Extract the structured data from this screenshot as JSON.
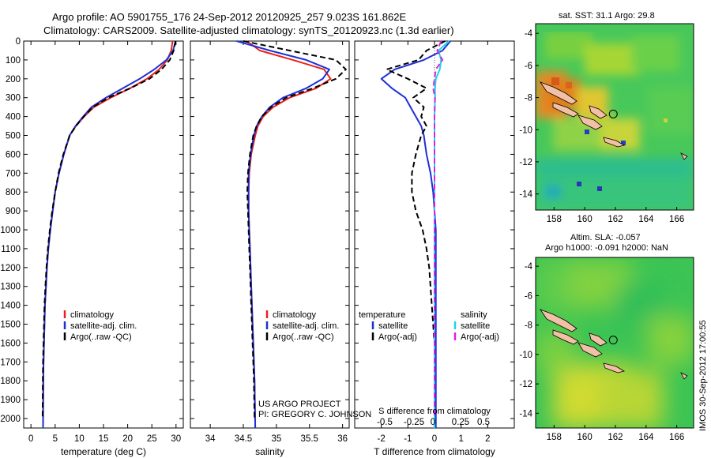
{
  "title_line1": "Argo profile: AO 5901755_176 24-Sep-2012 20120925_257 9.023S 161.862E",
  "title_line2": "Climatology: CARS2009. Satellite-adjusted climatology: synTS_20120923.nc (1.3d earlier)",
  "side_label": "IMOS 30-Sep-2012 17:00:55",
  "credit_line1": "US ARGO PROJECT",
  "credit_line2": "PI: GREGORY C. JOHNSON",
  "depth_ticks": [
    0,
    100,
    200,
    300,
    400,
    500,
    600,
    700,
    800,
    900,
    1000,
    1100,
    1200,
    1300,
    1400,
    1500,
    1600,
    1700,
    1800,
    1900,
    2000
  ],
  "colors": {
    "climatology": "#e8231c",
    "satellite": "#1f2fd6",
    "argo": "#000000",
    "sat_salinity": "#17d8e6",
    "argo_salinity": "#e020e0"
  },
  "chart_data": [
    {
      "type": "line",
      "xlabel": "temperature (deg C)",
      "xlim": [
        -1.5,
        31.5
      ],
      "ylim": [
        2050,
        0
      ],
      "xticks": [
        0,
        5,
        10,
        15,
        20,
        25,
        30
      ],
      "legend": [
        "climatology",
        "satellite-adj. clim.",
        "Argo(..raw -QC)"
      ],
      "series": [
        {
          "name": "climatology",
          "x": [
            29.3,
            29.0,
            28.2,
            26.5,
            24.0,
            20.5,
            16.5,
            13.0,
            11.0,
            9.3,
            8.0,
            6.8,
            5.8,
            5.0,
            4.5,
            4.0,
            3.6,
            3.3,
            3.1,
            2.9,
            2.8,
            2.7,
            2.6,
            2.55,
            2.5
          ],
          "y": [
            0,
            50,
            100,
            150,
            200,
            250,
            300,
            350,
            400,
            450,
            500,
            600,
            700,
            800,
            900,
            1000,
            1100,
            1200,
            1300,
            1400,
            1500,
            1600,
            1700,
            1800,
            2050
          ]
        },
        {
          "name": "satellite-adj. clim.",
          "x": [
            29.9,
            29.4,
            28.0,
            25.5,
            22.5,
            19.0,
            15.5,
            12.5,
            10.8,
            9.2,
            8.0,
            6.8,
            5.8,
            5.0,
            4.5,
            4.0,
            3.6,
            3.3,
            3.1,
            2.9,
            2.8,
            2.7,
            2.6,
            2.55,
            2.5
          ],
          "y": [
            0,
            50,
            100,
            150,
            200,
            250,
            300,
            350,
            400,
            450,
            500,
            600,
            700,
            800,
            900,
            1000,
            1100,
            1200,
            1300,
            1400,
            1500,
            1600,
            1700,
            1800,
            2050
          ]
        },
        {
          "name": "Argo(..raw -QC)",
          "x": [
            29.9,
            29.5,
            28.7,
            27.0,
            24.5,
            20.5,
            16.0,
            12.8,
            10.9,
            9.3,
            8.0,
            6.7,
            5.7,
            5.0,
            4.4,
            3.9,
            3.5,
            3.2,
            3.0,
            2.8,
            2.7,
            2.6,
            2.5,
            2.45,
            2.4
          ],
          "y": [
            0,
            50,
            100,
            150,
            200,
            250,
            300,
            350,
            400,
            450,
            500,
            600,
            700,
            800,
            900,
            1000,
            1100,
            1200,
            1300,
            1400,
            1500,
            1600,
            1700,
            1800,
            2000
          ]
        }
      ]
    },
    {
      "type": "line",
      "xlabel": "salinity",
      "xlim": [
        33.7,
        36.1
      ],
      "ylim": [
        2050,
        0
      ],
      "xticks": [
        34,
        34.5,
        35,
        35.5,
        36
      ],
      "legend": [
        "climatology",
        "satellite-adj. clim.",
        "Argo(..raw -QC)"
      ],
      "series": [
        {
          "name": "climatology",
          "x": [
            34.55,
            34.75,
            35.25,
            35.72,
            35.82,
            35.6,
            35.2,
            34.95,
            34.8,
            34.72,
            34.68,
            34.62,
            34.59,
            34.58,
            34.58,
            34.59,
            34.6,
            34.61,
            34.62,
            34.63,
            34.64,
            34.65,
            34.66,
            34.67,
            34.68
          ],
          "y": [
            0,
            50,
            100,
            150,
            200,
            250,
            300,
            350,
            400,
            450,
            500,
            600,
            700,
            800,
            900,
            1000,
            1100,
            1200,
            1300,
            1400,
            1500,
            1600,
            1700,
            1800,
            2050
          ]
        },
        {
          "name": "satellite-adj. clim.",
          "x": [
            34.4,
            34.9,
            35.45,
            35.8,
            35.7,
            35.45,
            35.1,
            34.9,
            34.78,
            34.7,
            34.66,
            34.61,
            34.58,
            34.58,
            34.58,
            34.59,
            34.6,
            34.61,
            34.62,
            34.63,
            34.64,
            34.65,
            34.66,
            34.67,
            34.68
          ],
          "y": [
            0,
            50,
            100,
            150,
            200,
            250,
            300,
            350,
            400,
            450,
            500,
            600,
            700,
            800,
            900,
            1000,
            1100,
            1200,
            1300,
            1400,
            1500,
            1600,
            1700,
            1800,
            2050
          ]
        },
        {
          "name": "Argo(..raw -QC)",
          "x": [
            34.5,
            35.2,
            35.9,
            36.05,
            35.9,
            35.55,
            35.15,
            34.92,
            34.78,
            34.7,
            34.65,
            34.6,
            34.57,
            34.56,
            34.57,
            34.58,
            34.59,
            34.6,
            34.61,
            34.62,
            34.63,
            34.64,
            34.65,
            34.66,
            34.67
          ],
          "y": [
            0,
            50,
            100,
            150,
            200,
            250,
            300,
            350,
            400,
            450,
            500,
            600,
            700,
            800,
            900,
            1000,
            1100,
            1200,
            1300,
            1400,
            1500,
            1600,
            1700,
            1800,
            2000
          ]
        }
      ]
    },
    {
      "type": "line",
      "xlabel": "T difference from climatology",
      "xlabel_top": "S difference from climatology",
      "xlim": [
        -3,
        3
      ],
      "ylim": [
        2050,
        0
      ],
      "xticks": [
        -2,
        -1,
        0,
        1,
        2
      ],
      "s_ticks": [
        "-0.5",
        "-0.25",
        "0",
        "0.25",
        "0.5"
      ],
      "legend": [
        {
          "group": "temperature",
          "items": [
            "satellite",
            "Argo(-adj)"
          ]
        },
        {
          "group": "salinity",
          "items": [
            "satellite",
            "Argo(-adj)"
          ]
        }
      ],
      "series": [
        {
          "name": "temperature satellite",
          "x": [
            0.6,
            0.3,
            -0.4,
            -1.5,
            -2.0,
            -1.6,
            -1.1,
            -0.9,
            -0.7,
            -0.5,
            -0.4,
            -0.3,
            -0.15,
            -0.05,
            0.0,
            0.05,
            0.05,
            0.05,
            0.05,
            0.05,
            0.05,
            0.05,
            0.05
          ],
          "y": [
            0,
            50,
            100,
            150,
            200,
            250,
            300,
            350,
            400,
            450,
            500,
            600,
            700,
            800,
            900,
            1000,
            1100,
            1200,
            1400,
            1600,
            1800,
            1900,
            2050
          ]
        },
        {
          "name": "temperature Argo(-adj)",
          "x": [
            0.4,
            -0.3,
            -0.6,
            -1.8,
            -1.0,
            -0.3,
            -0.8,
            -0.4,
            -0.5,
            -0.3,
            -0.5,
            -0.7,
            -0.85,
            -0.85,
            -0.7,
            -0.45,
            -0.3,
            -0.2,
            -0.1,
            0.0,
            0.0,
            0.0,
            0.0
          ],
          "y": [
            0,
            50,
            100,
            150,
            200,
            250,
            300,
            350,
            400,
            450,
            500,
            600,
            700,
            800,
            900,
            1000,
            1100,
            1200,
            1400,
            1600,
            1800,
            1900,
            2000
          ]
        },
        {
          "name": "salinity satellite",
          "x": [
            0.55,
            0.15,
            0.25,
            0.2,
            0.05,
            0.02,
            0.02,
            0.01,
            0.0,
            0.0,
            0.0,
            0.0,
            0.0,
            0.0,
            0.0,
            0.0,
            0.0,
            0.0,
            0.0,
            0.0,
            0.0,
            0.0,
            0.0
          ],
          "y": [
            0,
            50,
            100,
            150,
            200,
            250,
            300,
            350,
            400,
            450,
            500,
            600,
            700,
            800,
            900,
            1000,
            1100,
            1200,
            1400,
            1600,
            1800,
            1900,
            2050
          ]
        },
        {
          "name": "salinity Argo(-adj)",
          "x": [
            0.25,
            0.1,
            0.3,
            0.05,
            0.0,
            -0.05,
            0.02,
            0.01,
            0.0,
            0.0,
            0.0,
            0.0,
            0.0,
            0.0,
            0.0,
            0.0,
            0.0,
            0.0,
            0.0,
            0.0,
            0.0,
            0.0,
            0.0
          ],
          "y": [
            0,
            50,
            100,
            150,
            200,
            250,
            300,
            350,
            400,
            450,
            500,
            600,
            700,
            800,
            900,
            1000,
            1100,
            1200,
            1400,
            1600,
            1800,
            1900,
            2000
          ]
        }
      ]
    },
    {
      "type": "heatmap",
      "title": "sat. SST: 31.1  Argo: 29.8",
      "xlim": [
        156.8,
        167.1
      ],
      "ylim": [
        -15.0,
        -3.4
      ],
      "xticks": [
        158,
        160,
        162,
        164,
        166
      ],
      "yticks": [
        -4,
        -6,
        -8,
        -10,
        -12,
        -14
      ],
      "argo_position": [
        161.86,
        -9.02
      ]
    },
    {
      "type": "heatmap",
      "title_line1": "Altim. SLA: -0.057",
      "title_line2": "Argo h1000: -0.091  h2000: NaN",
      "xlim": [
        156.8,
        167.1
      ],
      "ylim": [
        -15.0,
        -3.4
      ],
      "xticks": [
        158,
        160,
        162,
        164,
        166
      ],
      "yticks": [
        -4,
        -6,
        -8,
        -10,
        -12,
        -14
      ],
      "argo_position": [
        161.86,
        -9.02
      ]
    }
  ]
}
